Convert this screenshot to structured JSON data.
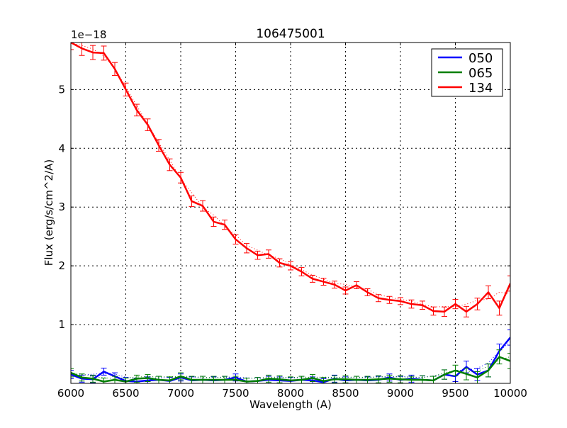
{
  "chart_data": {
    "type": "line",
    "title": "106475001",
    "xlabel": "Wavelength (A)",
    "ylabel": "Flux (erg/s/cm^2/A)",
    "y_offset_label": "1e−18",
    "xlim": [
      6000,
      10000
    ],
    "ylim": [
      0,
      5.8
    ],
    "y_scale": 1e-18,
    "xticks": [
      6000,
      6500,
      7000,
      7500,
      8000,
      8500,
      9000,
      9500,
      10000
    ],
    "yticks": [
      1,
      2,
      3,
      4,
      5
    ],
    "grid": true,
    "legend_position": "upper right",
    "x": [
      6000,
      6100,
      6200,
      6300,
      6400,
      6500,
      6600,
      6700,
      6800,
      6900,
      7000,
      7100,
      7200,
      7300,
      7400,
      7500,
      7600,
      7700,
      7800,
      7900,
      8000,
      8100,
      8200,
      8300,
      8400,
      8500,
      8600,
      8700,
      8800,
      8900,
      9000,
      9100,
      9200,
      9300,
      9400,
      9500,
      9600,
      9700,
      9800,
      9900,
      10000
    ],
    "series": [
      {
        "name": "050",
        "color": "#0000ff",
        "values": [
          0.15,
          0.08,
          0.07,
          0.2,
          0.12,
          0.04,
          0.03,
          0.05,
          0.06,
          0.04,
          0.1,
          0.05,
          0.06,
          0.05,
          0.06,
          0.1,
          0.03,
          0.04,
          0.06,
          0.05,
          0.04,
          0.06,
          0.05,
          0.02,
          0.08,
          0.05,
          0.06,
          0.05,
          0.06,
          0.1,
          0.06,
          0.08,
          0.06,
          0.05,
          0.15,
          0.12,
          0.28,
          0.15,
          0.22,
          0.55,
          0.78
        ],
        "errors": [
          0.07,
          0.06,
          0.06,
          0.06,
          0.06,
          0.06,
          0.06,
          0.06,
          0.06,
          0.06,
          0.06,
          0.06,
          0.06,
          0.06,
          0.06,
          0.06,
          0.06,
          0.06,
          0.06,
          0.06,
          0.06,
          0.06,
          0.06,
          0.06,
          0.06,
          0.06,
          0.06,
          0.06,
          0.06,
          0.06,
          0.06,
          0.06,
          0.07,
          0.07,
          0.08,
          0.09,
          0.1,
          0.1,
          0.11,
          0.12,
          0.13
        ]
      },
      {
        "name": "065",
        "color": "#007f00",
        "values": [
          0.18,
          0.1,
          0.08,
          0.03,
          0.06,
          0.03,
          0.08,
          0.09,
          0.06,
          0.05,
          0.12,
          0.06,
          0.06,
          0.06,
          0.06,
          0.06,
          0.03,
          0.04,
          0.08,
          0.07,
          0.05,
          0.06,
          0.09,
          0.04,
          0.07,
          0.07,
          0.06,
          0.06,
          0.07,
          0.08,
          0.07,
          0.06,
          0.06,
          0.05,
          0.15,
          0.22,
          0.16,
          0.1,
          0.22,
          0.45,
          0.38
        ],
        "errors": [
          0.07,
          0.06,
          0.06,
          0.06,
          0.06,
          0.06,
          0.06,
          0.06,
          0.06,
          0.06,
          0.06,
          0.06,
          0.06,
          0.06,
          0.06,
          0.06,
          0.06,
          0.06,
          0.06,
          0.06,
          0.06,
          0.06,
          0.06,
          0.06,
          0.06,
          0.06,
          0.06,
          0.06,
          0.06,
          0.06,
          0.06,
          0.06,
          0.07,
          0.07,
          0.08,
          0.09,
          0.1,
          0.1,
          0.11,
          0.12,
          0.13
        ]
      },
      {
        "name": "134",
        "color": "#ff0000",
        "values": [
          5.8,
          5.7,
          5.63,
          5.62,
          5.35,
          5.0,
          4.65,
          4.4,
          4.05,
          3.72,
          3.5,
          3.1,
          3.02,
          2.75,
          2.7,
          2.45,
          2.3,
          2.18,
          2.2,
          2.05,
          2.0,
          1.9,
          1.78,
          1.73,
          1.68,
          1.58,
          1.67,
          1.55,
          1.45,
          1.42,
          1.4,
          1.35,
          1.33,
          1.23,
          1.22,
          1.35,
          1.22,
          1.35,
          1.55,
          1.28,
          1.7
        ],
        "errors": [
          0.12,
          0.12,
          0.12,
          0.12,
          0.11,
          0.11,
          0.1,
          0.1,
          0.1,
          0.1,
          0.09,
          0.09,
          0.09,
          0.08,
          0.08,
          0.08,
          0.08,
          0.07,
          0.07,
          0.07,
          0.07,
          0.07,
          0.06,
          0.06,
          0.06,
          0.06,
          0.06,
          0.06,
          0.06,
          0.06,
          0.06,
          0.07,
          0.07,
          0.07,
          0.08,
          0.08,
          0.09,
          0.1,
          0.11,
          0.12,
          0.13
        ]
      }
    ]
  },
  "axes": {
    "xtick_labels": [
      "6000",
      "6500",
      "7000",
      "7500",
      "8000",
      "8500",
      "9000",
      "9500",
      "10000"
    ],
    "ytick_labels": [
      "1",
      "2",
      "3",
      "4",
      "5"
    ]
  },
  "legend": {
    "items": [
      {
        "label": "050",
        "color": "#0000ff"
      },
      {
        "label": "065",
        "color": "#007f00"
      },
      {
        "label": "134",
        "color": "#ff0000"
      }
    ]
  }
}
